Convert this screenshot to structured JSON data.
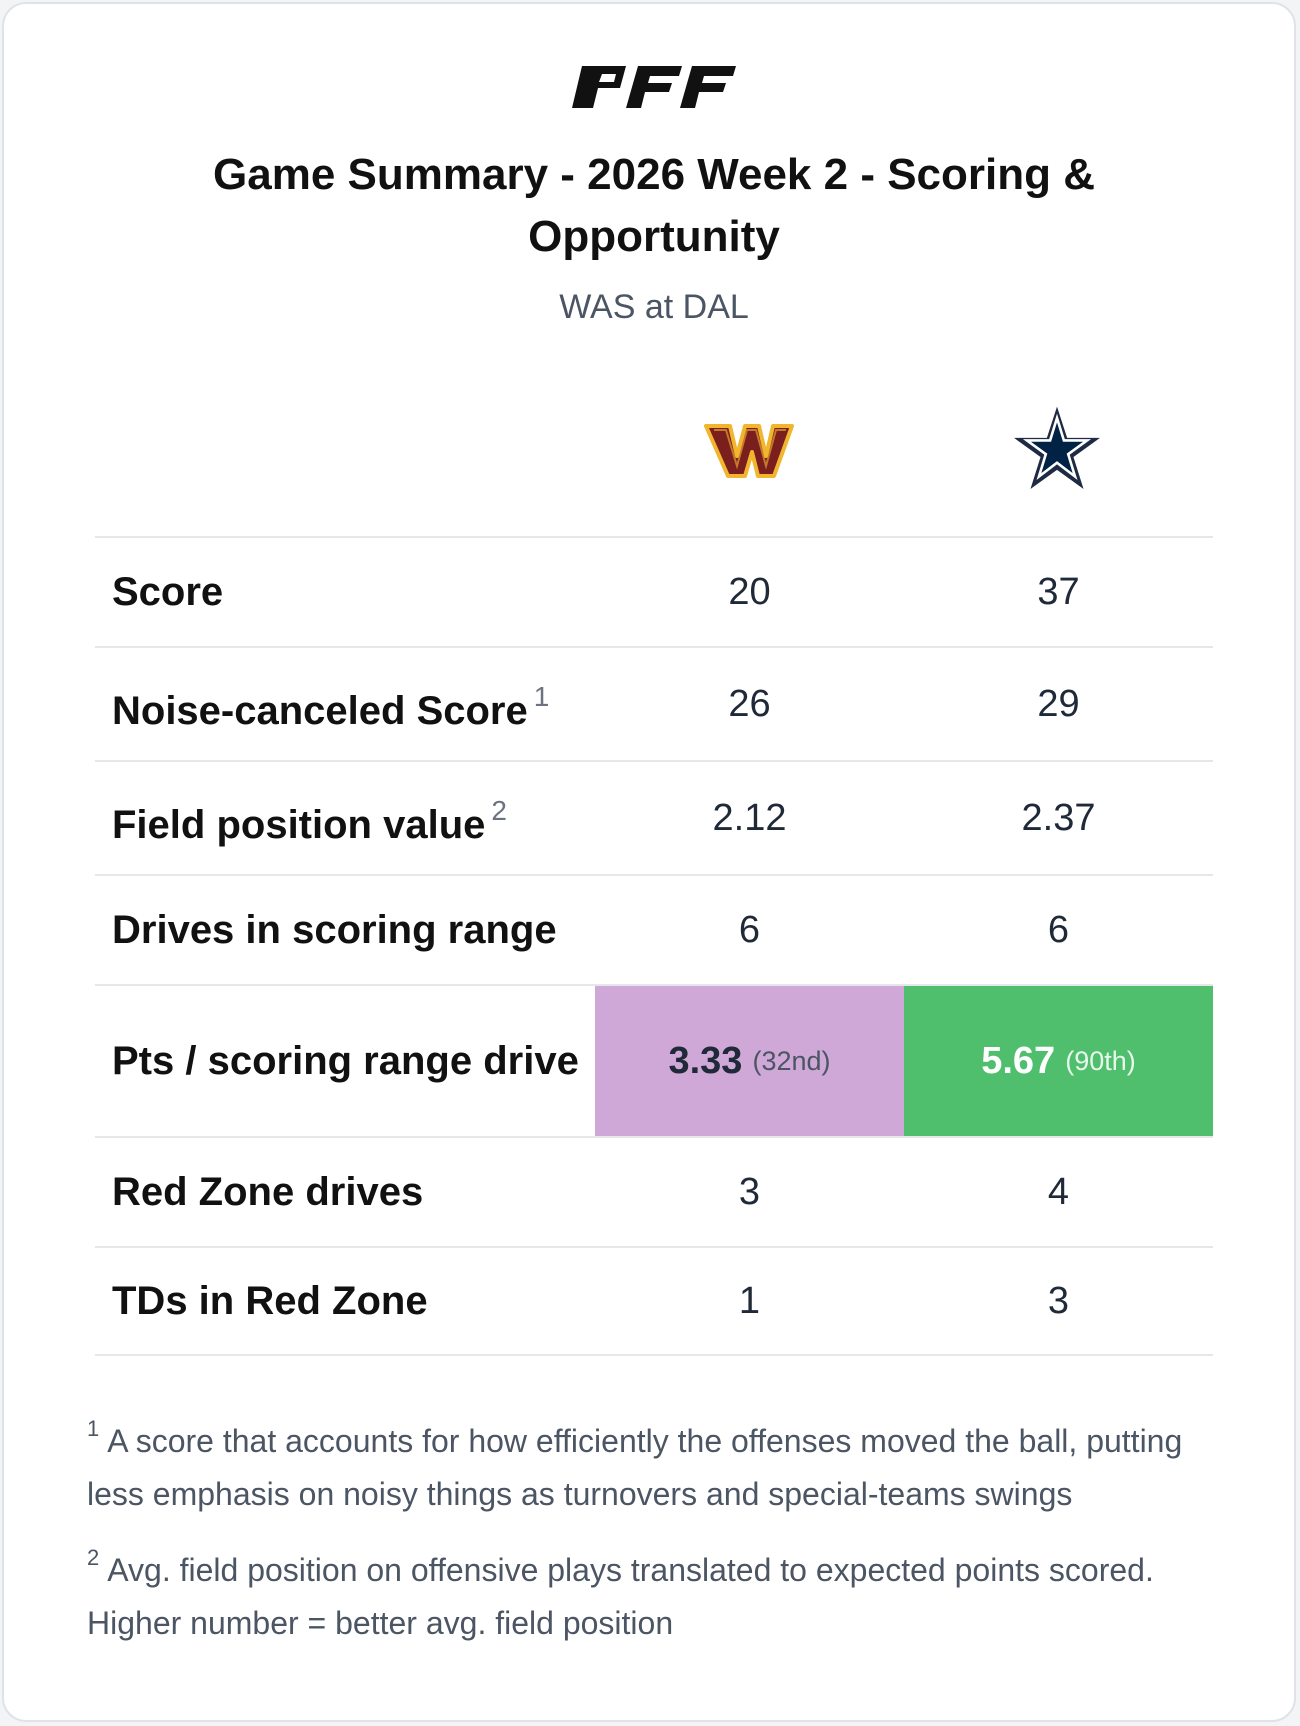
{
  "header": {
    "logo_icon": "pff-logo",
    "title": "Game Summary - 2026 Week 2 - Scoring & Opportunity",
    "subtitle": "WAS at DAL"
  },
  "teams": [
    {
      "abbr": "WAS",
      "icon": "commanders-w-logo"
    },
    {
      "abbr": "DAL",
      "icon": "cowboys-star-logo"
    }
  ],
  "rows": [
    {
      "label": "Score",
      "sup": "",
      "was": "20",
      "dal": "37"
    },
    {
      "label": "Noise-canceled Score",
      "sup": "1",
      "was": "26",
      "dal": "29"
    },
    {
      "label": "Field position value",
      "sup": "2",
      "was": "2.12",
      "dal": "2.37"
    },
    {
      "label": "Drives in scoring range",
      "sup": "",
      "was": "6",
      "dal": "6"
    },
    {
      "label": "Pts / scoring range drive",
      "sup": "",
      "was": "3.33",
      "was_rank": "(32nd)",
      "dal": "5.67",
      "dal_rank": "(90th)"
    },
    {
      "label": "Red Zone drives",
      "sup": "",
      "was": "3",
      "dal": "4"
    },
    {
      "label": "TDs in Red Zone",
      "sup": "",
      "was": "1",
      "dal": "3"
    }
  ],
  "highlight_colors": {
    "low": "#cfa8d8",
    "high": "#4fbe6d"
  },
  "footnotes": [
    {
      "num": "1",
      "text": "A score that accounts for how efficiently the offenses moved the ball, putting less emphasis on noisy things as turnovers and special-teams swings"
    },
    {
      "num": "2",
      "text": "Avg. field position on offensive plays translated to expected points scored. Higher number = better avg. field position"
    }
  ]
}
